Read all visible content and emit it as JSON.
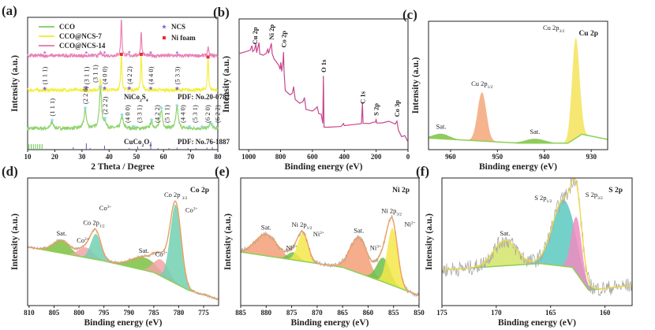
{
  "chart_data": [
    {
      "panel": "(a)",
      "type": "line",
      "xlabel": "2 Theta / Degree",
      "ylabel": "Intensity (a.u.)",
      "xlim": [
        10,
        80
      ],
      "ylim": [
        0,
        1
      ],
      "xticks": [
        10,
        20,
        30,
        40,
        50,
        60,
        70,
        80
      ],
      "grid": false,
      "legend_position": "top-left",
      "series": [
        {
          "name": "CCO",
          "color": "#8ed36b",
          "baseline": 0.16,
          "peak_width": 1.0,
          "peaks": [
            [
              19,
              0.05
            ],
            [
              31.2,
              0.14
            ],
            [
              36.8,
              0.3
            ],
            [
              38.5,
              0.04
            ],
            [
              44.7,
              0.09
            ],
            [
              55.6,
              0.05
            ],
            [
              59.2,
              0.14
            ],
            [
              65,
              0.16
            ],
            [
              77.3,
              0.04
            ]
          ]
        },
        {
          "name": "CCO@NCS-7",
          "color": "#f3ee3d",
          "baseline": 0.45,
          "peak_width": 0.5,
          "peaks": [
            [
              36.8,
              0.08
            ],
            [
              44.5,
              0.27
            ],
            [
              51.8,
              0.27
            ],
            [
              76.4,
              0.25
            ]
          ]
        },
        {
          "name": "CCO@NCS-14",
          "color": "#e981b6",
          "baseline": 0.71,
          "peak_width": 0.45,
          "peaks": [
            [
              36.8,
              0.03
            ],
            [
              44.5,
              0.29
            ],
            [
              51.8,
              0.19
            ],
            [
              76.4,
              0.07
            ]
          ]
        }
      ],
      "marker_legend": [
        {
          "name": "NCS",
          "color": "#8a63d2",
          "symbol": "star"
        },
        {
          "name": "Ni foam",
          "color": "#ee2a2a",
          "symbol": "square"
        }
      ],
      "ncs_reflections": [
        {
          "hkl": "(1 1 1)",
          "x": 16.3
        },
        {
          "hkl": "(3 1 1)",
          "x": 31.6
        },
        {
          "hkl": "(4 0 0)",
          "x": 38.3
        },
        {
          "hkl": "(4 2 2)",
          "x": 47.4
        },
        {
          "hkl": "(4 4 0)",
          "x": 55.3
        },
        {
          "hkl": "(5 3 3)",
          "x": 65.0
        }
      ],
      "cco_reflections": [
        {
          "hkl": "(1 1 1)",
          "x": 19.0
        },
        {
          "hkl": "(2 2 0)",
          "x": 31.2
        },
        {
          "hkl": "(3 1 1)",
          "x": 36.8
        },
        {
          "hkl": "(2 2 2)",
          "x": 38.5
        },
        {
          "hkl": "(4 0 0)",
          "x": 44.7
        },
        {
          "hkl": "(3 3 1)",
          "x": 49.1
        },
        {
          "hkl": "(4 2 2)",
          "x": 55.6
        },
        {
          "hkl": "(5 1 1)",
          "x": 59.2
        },
        {
          "hkl": "(4 4 0)",
          "x": 65.0
        },
        {
          "hkl": "(5 3 1)",
          "x": 69.5
        },
        {
          "hkl": "(6 2 0)",
          "x": 74.2
        },
        {
          "hkl": "(6 2 2)",
          "x": 77.8
        }
      ],
      "ni_foam_peaks": [
        44.5,
        51.8,
        76.4
      ],
      "references": [
        {
          "formula": [
            [
              "NiCo",
              ""
            ],
            [
              "2",
              "sub"
            ],
            [
              "S",
              ""
            ],
            [
              "4",
              "sub"
            ]
          ],
          "pdf": "PDF: No.20-0782"
        },
        {
          "formula": [
            [
              "CuCo",
              ""
            ],
            [
              "2",
              "sub"
            ],
            [
              "O",
              ""
            ],
            [
              "4",
              "sub"
            ]
          ],
          "pdf": "PDF: No.76-1887"
        }
      ],
      "reference_sticks": {
        "green": [
          10.5,
          11.3,
          12.1,
          12.9,
          13.7,
          14.5,
          15.3
        ],
        "purple": [
          [
            26.8,
            0.3
          ],
          [
            31.6,
            0.8
          ],
          [
            33.0,
            0.2
          ],
          [
            38.3,
            0.5
          ],
          [
            47.4,
            0.2
          ],
          [
            50.5,
            0.4
          ],
          [
            55.3,
            1.0
          ],
          [
            58.0,
            0.2
          ],
          [
            62.0,
            0.2
          ],
          [
            65.0,
            0.25
          ],
          [
            69.0,
            0.2
          ],
          [
            72.0,
            0.2
          ],
          [
            76.0,
            0.25
          ],
          [
            78.0,
            0.3
          ]
        ]
      }
    },
    {
      "panel": "(b)",
      "type": "line",
      "xlabel": "Binding energy (eV)",
      "ylabel": "Intensity (a.u.)",
      "xlim": [
        1060,
        0
      ],
      "ylim": [
        0,
        1
      ],
      "xticks": [
        1000,
        800,
        600,
        400,
        200,
        0
      ],
      "grid": false,
      "color": "#c8468e",
      "points": [
        [
          1060,
          0.73
        ],
        [
          1020,
          0.75
        ],
        [
          990,
          0.76
        ],
        [
          980,
          0.8
        ],
        [
          975,
          0.75
        ],
        [
          965,
          0.76
        ],
        [
          955,
          0.81
        ],
        [
          950,
          0.74
        ],
        [
          935,
          0.82
        ],
        [
          930,
          0.73
        ],
        [
          910,
          0.72
        ],
        [
          890,
          0.74
        ],
        [
          880,
          0.77
        ],
        [
          875,
          0.74
        ],
        [
          865,
          0.78
        ],
        [
          858,
          0.81
        ],
        [
          852,
          0.73
        ],
        [
          840,
          0.69
        ],
        [
          825,
          0.67
        ],
        [
          810,
          0.64
        ],
        [
          803,
          0.61
        ],
        [
          798,
          0.67
        ],
        [
          793,
          0.6
        ],
        [
          785,
          0.66
        ],
        [
          781,
          0.75
        ],
        [
          778,
          0.6
        ],
        [
          770,
          0.45
        ],
        [
          740,
          0.42
        ],
        [
          725,
          0.43
        ],
        [
          718,
          0.48
        ],
        [
          708,
          0.38
        ],
        [
          680,
          0.36
        ],
        [
          660,
          0.37
        ],
        [
          650,
          0.4
        ],
        [
          640,
          0.31
        ],
        [
          600,
          0.3
        ],
        [
          580,
          0.31
        ],
        [
          570,
          0.33
        ],
        [
          560,
          0.28
        ],
        [
          545,
          0.27
        ],
        [
          535,
          0.2
        ],
        [
          531,
          0.56
        ],
        [
          527,
          0.17
        ],
        [
          500,
          0.17
        ],
        [
          420,
          0.18
        ],
        [
          405,
          0.2
        ],
        [
          400,
          0.18
        ],
        [
          320,
          0.19
        ],
        [
          292,
          0.2
        ],
        [
          286,
          0.36
        ],
        [
          282,
          0.2
        ],
        [
          240,
          0.2
        ],
        [
          220,
          0.21
        ],
        [
          205,
          0.21
        ],
        [
          200,
          0.23
        ],
        [
          195,
          0.2
        ],
        [
          160,
          0.21
        ],
        [
          120,
          0.22
        ],
        [
          80,
          0.2
        ],
        [
          70,
          0.22
        ],
        [
          60,
          0.15
        ],
        [
          40,
          0.1
        ],
        [
          20,
          0.11
        ],
        [
          10,
          0.08
        ],
        [
          0,
          0.06
        ]
      ],
      "peak_labels": [
        {
          "text": "Cu 2p",
          "x": 962
        },
        {
          "text": "Ni 2p",
          "x": 858
        },
        {
          "text": "Co 2p",
          "x": 781
        },
        {
          "text": "O 1s",
          "x": 531
        },
        {
          "text": "C 1s",
          "x": 285
        },
        {
          "text": "S 2p",
          "x": 200
        },
        {
          "text": "Co 3p",
          "x": 70
        }
      ]
    },
    {
      "panel": "(c)",
      "type": "area",
      "title": "Cu 2p",
      "xlabel": "Binding energy (eV)",
      "ylabel": "Intensity (a.u.)",
      "xlim": [
        964.7,
        926.5
      ],
      "ylim": [
        0,
        1
      ],
      "xticks": [
        960,
        950,
        940,
        930
      ],
      "grid": false,
      "background": [
        [
          964.7,
          0.09
        ],
        [
          945,
          0.05
        ],
        [
          935,
          0.05
        ],
        [
          932,
          0.12
        ],
        [
          926.5,
          0.08
        ]
      ],
      "components": [
        {
          "center": 962,
          "height": 0.04,
          "fwhm": 4,
          "color": "#7dc242",
          "label": [
            [
              "Sat.",
              ""
            ]
          ]
        },
        {
          "center": 953.3,
          "height": 0.38,
          "fwhm": 2.2,
          "color": "#f3a77a",
          "label": [
            [
              "Cu 2p",
              ""
            ],
            [
              "1/2",
              "sub"
            ]
          ]
        },
        {
          "center": 942,
          "height": 0.035,
          "fwhm": 5,
          "color": "#7dc242",
          "label": [
            [
              "Sat.",
              ""
            ]
          ]
        },
        {
          "center": 933.3,
          "height": 0.78,
          "fwhm": 1.9,
          "color": "#f5e35a",
          "label": [
            [
              "Cu 2p",
              ""
            ],
            [
              "3/2",
              "sub"
            ]
          ]
        }
      ]
    },
    {
      "panel": "(d)",
      "type": "area",
      "title": "Co 2p",
      "xlabel": "Binding energy (eV)",
      "ylabel": "Intensity (a.u.)",
      "xlim": [
        810.3,
        772
      ],
      "ylim": [
        0,
        1
      ],
      "xticks": [
        810,
        805,
        800,
        795,
        790,
        785,
        780,
        775
      ],
      "grid": false,
      "envelope_color": "#f0a060",
      "noise": 0.012,
      "background": [
        [
          810.3,
          0.46
        ],
        [
          795,
          0.35
        ],
        [
          785,
          0.26
        ],
        [
          778,
          0.12
        ],
        [
          772,
          0.05
        ]
      ],
      "components": [
        {
          "center": 803.5,
          "height": 0.1,
          "fwhm": 4,
          "color": "#7dbf3f",
          "label": [
            [
              "Sat.",
              ""
            ]
          ]
        },
        {
          "center": 798.6,
          "height": 0.08,
          "fwhm": 3.5,
          "color": "#f4a3a8",
          "label": [
            [
              "Co",
              ""
            ],
            [
              "2+",
              "sup"
            ]
          ]
        },
        {
          "center": 796.6,
          "height": 0.2,
          "fwhm": 2.4,
          "color": "#72d0b2",
          "label": [
            [
              "Co",
              ""
            ],
            [
              "3+",
              "sup"
            ]
          ]
        },
        {
          "center": 787,
          "height": 0.1,
          "fwhm": 6,
          "color": "#7dbf3f",
          "label": [
            [
              "Sat.",
              ""
            ]
          ]
        },
        {
          "center": 783.5,
          "height": 0.13,
          "fwhm": 3.5,
          "color": "#f4a3a8",
          "label": [
            [
              "Co",
              ""
            ],
            [
              "2+",
              "sup"
            ]
          ]
        },
        {
          "center": 780.6,
          "height": 0.62,
          "fwhm": 2.6,
          "color": "#72d0b2",
          "label": [
            [
              "Co",
              ""
            ],
            [
              "3+",
              "sup"
            ]
          ]
        }
      ],
      "envelope_labels": [
        {
          "x": 797,
          "label": [
            [
              "Co 2p",
              ""
            ],
            [
              "1/2",
              "sub"
            ]
          ]
        },
        {
          "x": 780.6,
          "label": [
            [
              "Co 2p ",
              ""
            ],
            [
              "3/2",
              "sub"
            ]
          ]
        }
      ]
    },
    {
      "panel": "(e)",
      "type": "area",
      "title": "Ni 2p",
      "xlabel": "Binding energy (eV)",
      "ylabel": "Intensity (a.u.)",
      "xlim": [
        885,
        850
      ],
      "ylim": [
        0,
        1
      ],
      "xticks": [
        885,
        880,
        875,
        870,
        865,
        860,
        855,
        850
      ],
      "grid": false,
      "envelope_color": "#f0a060",
      "noise": 0.02,
      "background": [
        [
          885,
          0.42
        ],
        [
          865,
          0.3
        ],
        [
          858,
          0.2
        ],
        [
          850,
          0.08
        ]
      ],
      "components": [
        {
          "center": 880,
          "height": 0.17,
          "fwhm": 5,
          "color": "#f59f78",
          "label": [
            [
              "Sat.",
              ""
            ]
          ]
        },
        {
          "center": 874.7,
          "height": 0.06,
          "fwhm": 2.5,
          "color": "#6cbf4a",
          "label": [
            [
              "Ni",
              ""
            ],
            [
              "3+",
              "sup"
            ]
          ]
        },
        {
          "center": 872.8,
          "height": 0.22,
          "fwhm": 2.4,
          "color": "#f5e84a",
          "label": [
            [
              "Ni",
              ""
            ],
            [
              "2+",
              "sup"
            ]
          ]
        },
        {
          "center": 861.8,
          "height": 0.28,
          "fwhm": 4,
          "color": "#f59f78",
          "label": [
            [
              "Sat.",
              ""
            ]
          ]
        },
        {
          "center": 857,
          "height": 0.19,
          "fwhm": 3,
          "color": "#6cbf4a",
          "label": [
            [
              "Ni",
              ""
            ],
            [
              "3+",
              "sup"
            ]
          ]
        },
        {
          "center": 855.2,
          "height": 0.45,
          "fwhm": 2.4,
          "color": "#f5e84a",
          "label": [
            [
              "Ni",
              ""
            ],
            [
              "2+",
              "sup"
            ]
          ]
        }
      ],
      "envelope_labels": [
        {
          "x": 873,
          "label": [
            [
              "Ni 2p",
              ""
            ],
            [
              "1/2",
              "sub"
            ]
          ]
        },
        {
          "x": 855.4,
          "label": [
            [
              "Ni 2p",
              ""
            ],
            [
              "3/2",
              "sub"
            ]
          ]
        }
      ]
    },
    {
      "panel": "(f)",
      "type": "area",
      "title": "S 2p",
      "xlabel": "Binding energy (eV)",
      "ylabel": "Intensity (a.u.)",
      "xlim": [
        175,
        157.5
      ],
      "ylim": [
        0,
        1
      ],
      "xticks": [
        175,
        170,
        165,
        160
      ],
      "grid": false,
      "envelope_color": "#f0d84a",
      "noise": 0.06,
      "background": [
        [
          175,
          0.28
        ],
        [
          166,
          0.33
        ],
        [
          163,
          0.3
        ],
        [
          161.5,
          0.12
        ],
        [
          157.5,
          0.16
        ]
      ],
      "components": [
        {
          "center": 169.2,
          "height": 0.2,
          "fwhm": 2.5,
          "color": "#d4e46a",
          "label": [
            [
              "Sat.",
              ""
            ]
          ]
        },
        {
          "center": 163.8,
          "height": 0.52,
          "fwhm": 2.4,
          "color": "#5cc9c0",
          "label": [
            [
              "S 2p",
              ""
            ],
            [
              "1/2",
              "sub"
            ]
          ]
        },
        {
          "center": 162.6,
          "height": 0.44,
          "fwhm": 1.1,
          "color": "#f08cc0",
          "label": [
            [
              "S 2p",
              ""
            ],
            [
              "3/2",
              "sub"
            ]
          ]
        }
      ]
    }
  ]
}
